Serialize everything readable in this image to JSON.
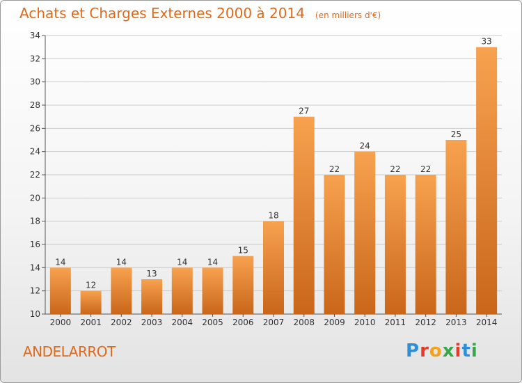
{
  "chart_data": {
    "type": "bar",
    "title": "Achats et Charges Externes 2000 à 2014",
    "unit": "(en milliers d'€)",
    "categories": [
      "2000",
      "2001",
      "2002",
      "2003",
      "2004",
      "2005",
      "2006",
      "2007",
      "2008",
      "2009",
      "2010",
      "2011",
      "2012",
      "2013",
      "2014"
    ],
    "values": [
      14,
      12,
      14,
      13,
      14,
      14,
      15,
      18,
      27,
      22,
      24,
      22,
      22,
      25,
      33
    ],
    "ylim": [
      10,
      34
    ],
    "yticks": [
      10,
      12,
      14,
      16,
      18,
      20,
      22,
      24,
      26,
      28,
      30,
      32,
      34
    ],
    "grid": true,
    "bar_color_top": "#f7a24f",
    "bar_color_bottom": "#c9661a"
  },
  "commune": "ANDELARROT",
  "logo": {
    "letters": [
      "P",
      "r",
      "o",
      "x",
      "i",
      "t",
      "i"
    ]
  },
  "colors": {
    "accent": "#e06a1a",
    "grid": "#cccccc",
    "axis": "#555555"
  }
}
